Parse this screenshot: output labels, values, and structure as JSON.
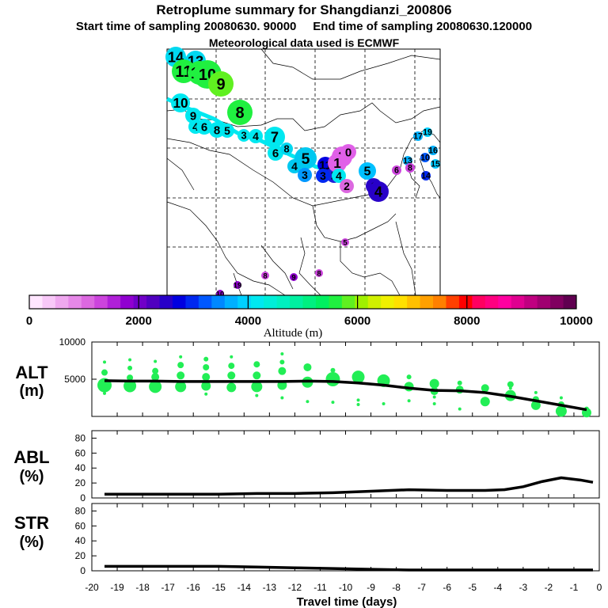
{
  "header": {
    "title": "Retroplume summary for Shangdianzi_200806",
    "subtitle_start": "Start time of sampling 20080630. 90000",
    "subtitle_end": "End time of sampling 20080630.120000",
    "met_line": "Meteorological data used is ECMWF"
  },
  "colorbar": {
    "label": "Altitude (m)",
    "ticks": [
      "0",
      "2000",
      "4000",
      "6000",
      "8000",
      "10000"
    ],
    "colors": [
      "#ffe6ff",
      "#f8c8f8",
      "#efa8ef",
      "#e688e8",
      "#dc68e0",
      "#cc44dd",
      "#b020d8",
      "#9000d0",
      "#7000c8",
      "#5000c0",
      "#2800c8",
      "#0000e0",
      "#0028f0",
      "#0058ff",
      "#0088ff",
      "#00b0ff",
      "#00d0ff",
      "#00e8f0",
      "#00eed8",
      "#00f0c0",
      "#00f0a0",
      "#00f080",
      "#00f060",
      "#20f040",
      "#60f020",
      "#a0f000",
      "#d0f000",
      "#f0f000",
      "#ffe000",
      "#ffc000",
      "#ffa000",
      "#ff8000",
      "#ff4000",
      "#ff0000",
      "#ff0060",
      "#ff0080",
      "#ff00a0",
      "#e00090",
      "#c00080",
      "#a00070",
      "#800060",
      "#600050"
    ]
  },
  "map_labels": [
    {
      "t": "14",
      "c": "#00d8f0",
      "s": 13
    },
    {
      "t": "13",
      "c": "#00d8f0",
      "s": 13
    },
    {
      "t": "11",
      "c": "#20f040",
      "s": 15
    },
    {
      "t": "12",
      "c": "#20f040",
      "s": 15
    },
    {
      "t": "10",
      "c": "#20f040",
      "s": 18
    },
    {
      "t": "9",
      "c": "#60f020",
      "s": 16
    },
    {
      "t": "10",
      "c": "#00e8f0",
      "s": 12
    },
    {
      "t": "8",
      "c": "#20f040",
      "s": 16
    },
    {
      "t": "9",
      "c": "#00e8f0",
      "s": 10
    },
    {
      "t": "4",
      "c": "#00e8f0",
      "s": 9
    },
    {
      "t": "6",
      "c": "#00e8f0",
      "s": 10
    },
    {
      "t": "8",
      "c": "#00e8f0",
      "s": 10
    },
    {
      "t": "5",
      "c": "#00e8f0",
      "s": 9
    },
    {
      "t": "3",
      "c": "#00e8f0",
      "s": 8
    },
    {
      "t": "4",
      "c": "#00e8f0",
      "s": 9
    },
    {
      "t": "7",
      "c": "#00e8f0",
      "s": 13
    },
    {
      "t": "6",
      "c": "#00e8f0",
      "s": 10
    },
    {
      "t": "8",
      "c": "#00d8f0",
      "s": 8
    },
    {
      "t": "5",
      "c": "#00c8f0",
      "s": 14
    },
    {
      "t": "4",
      "c": "#00c8f0",
      "s": 9
    },
    {
      "t": "3",
      "c": "#0098ff",
      "s": 9
    },
    {
      "t": "11",
      "c": "#0000e0",
      "s": 10
    },
    {
      "t": "9",
      "c": "#e060e8",
      "s": 13
    },
    {
      "t": "0",
      "c": "#e060e8",
      "s": 10
    },
    {
      "t": "2",
      "c": "#2020d8",
      "s": 10
    },
    {
      "t": "3",
      "c": "#0028f0",
      "s": 9
    },
    {
      "t": "1",
      "c": "#e060e8",
      "s": 12
    },
    {
      "t": "4",
      "c": "#00e8f0",
      "s": 9
    },
    {
      "t": "2",
      "c": "#dc68e0",
      "s": 9
    },
    {
      "t": "5",
      "c": "#00c0ff",
      "s": 11
    },
    {
      "t": "6",
      "c": "#2800c8",
      "s": 10
    },
    {
      "t": "4",
      "c": "#2800c8",
      "s": 13
    },
    {
      "t": "6",
      "c": "#cc44dd",
      "s": 6
    },
    {
      "t": "13",
      "c": "#00b0ff",
      "s": 6
    },
    {
      "t": "8",
      "c": "#cc44dd",
      "s": 6
    },
    {
      "t": "16",
      "c": "#00b0ff",
      "s": 6
    },
    {
      "t": "10",
      "c": "#0058ff",
      "s": 6
    },
    {
      "t": "15",
      "c": "#00c8ff",
      "s": 6
    },
    {
      "t": "14",
      "c": "#0028f0",
      "s": 6
    },
    {
      "t": "17",
      "c": "#00b0ff",
      "s": 6
    },
    {
      "t": "19",
      "c": "#00d0ff",
      "s": 6
    },
    {
      "t": "5",
      "c": "#cc44dd",
      "s": 5
    },
    {
      "t": "8",
      "c": "#cc44dd",
      "s": 5
    },
    {
      "t": "9",
      "c": "#9000d0",
      "s": 5
    },
    {
      "t": "8",
      "c": "#cc44dd",
      "s": 5
    },
    {
      "t": "19",
      "c": "#9000d0",
      "s": 5
    },
    {
      "t": "10",
      "c": "#9000d0",
      "s": 5
    }
  ],
  "chart_data": [
    {
      "type": "scatter+line",
      "panel": "ALT",
      "ylabel": "ALT",
      "yunit": "(m)",
      "ylim": [
        0,
        10000
      ],
      "yticks": [
        5000,
        10000
      ],
      "x": [
        -19.5,
        -18.5,
        -17.5,
        -16.5,
        -15.5,
        -14.5,
        -13.5,
        -12.5,
        -11.5,
        -10.5,
        -9.5,
        -8.5,
        -7.5,
        -6.5,
        -5.5,
        -4.5,
        -3.5,
        -2.5,
        -1.5,
        -0.5
      ],
      "mean_line": [
        4800,
        4750,
        4750,
        4700,
        4700,
        4700,
        4700,
        4700,
        4750,
        4700,
        4500,
        4200,
        3800,
        3500,
        3450,
        3200,
        2700,
        2100,
        1500,
        900
      ],
      "particles": [
        {
          "x": -19.5,
          "alt": 4200,
          "r": 9
        },
        {
          "x": -19.5,
          "alt": 5900,
          "r": 4
        },
        {
          "x": -19.5,
          "alt": 7300,
          "r": 2
        },
        {
          "x": -19.5,
          "alt": 3100,
          "r": 2
        },
        {
          "x": -18.5,
          "alt": 4100,
          "r": 8
        },
        {
          "x": -18.5,
          "alt": 5200,
          "r": 4
        },
        {
          "x": -18.5,
          "alt": 6500,
          "r": 3
        },
        {
          "x": -18.5,
          "alt": 7600,
          "r": 2
        },
        {
          "x": -17.5,
          "alt": 4000,
          "r": 8
        },
        {
          "x": -17.5,
          "alt": 5300,
          "r": 5
        },
        {
          "x": -17.5,
          "alt": 6100,
          "r": 4
        },
        {
          "x": -17.5,
          "alt": 7400,
          "r": 2
        },
        {
          "x": -16.5,
          "alt": 4000,
          "r": 7
        },
        {
          "x": -16.5,
          "alt": 5500,
          "r": 5
        },
        {
          "x": -16.5,
          "alt": 6900,
          "r": 4
        },
        {
          "x": -16.5,
          "alt": 8000,
          "r": 2
        },
        {
          "x": -15.5,
          "alt": 4100,
          "r": 6
        },
        {
          "x": -15.5,
          "alt": 5300,
          "r": 5
        },
        {
          "x": -15.5,
          "alt": 6600,
          "r": 4
        },
        {
          "x": -15.5,
          "alt": 7700,
          "r": 3
        },
        {
          "x": -15.5,
          "alt": 3000,
          "r": 2
        },
        {
          "x": -14.5,
          "alt": 3900,
          "r": 6
        },
        {
          "x": -14.5,
          "alt": 5500,
          "r": 5
        },
        {
          "x": -14.5,
          "alt": 6800,
          "r": 4
        },
        {
          "x": -14.5,
          "alt": 8000,
          "r": 2
        },
        {
          "x": -13.5,
          "alt": 4000,
          "r": 7
        },
        {
          "x": -13.5,
          "alt": 5500,
          "r": 5
        },
        {
          "x": -13.5,
          "alt": 7000,
          "r": 4
        },
        {
          "x": -13.5,
          "alt": 2800,
          "r": 2
        },
        {
          "x": -12.5,
          "alt": 4200,
          "r": 6
        },
        {
          "x": -12.5,
          "alt": 6100,
          "r": 5
        },
        {
          "x": -12.5,
          "alt": 7300,
          "r": 3
        },
        {
          "x": -12.5,
          "alt": 8400,
          "r": 2
        },
        {
          "x": -12.5,
          "alt": 2500,
          "r": 2
        },
        {
          "x": -11.5,
          "alt": 4600,
          "r": 7
        },
        {
          "x": -11.5,
          "alt": 6600,
          "r": 5
        },
        {
          "x": -11.5,
          "alt": 2000,
          "r": 2
        },
        {
          "x": -10.5,
          "alt": 5000,
          "r": 9
        },
        {
          "x": -10.5,
          "alt": 6200,
          "r": 3
        },
        {
          "x": -10.5,
          "alt": 1900,
          "r": 2
        },
        {
          "x": -9.5,
          "alt": 5300,
          "r": 8
        },
        {
          "x": -9.5,
          "alt": 1600,
          "r": 2
        },
        {
          "x": -9.5,
          "alt": 2200,
          "r": 2
        },
        {
          "x": -8.5,
          "alt": 4800,
          "r": 8
        },
        {
          "x": -8.5,
          "alt": 1700,
          "r": 2
        },
        {
          "x": -7.5,
          "alt": 4000,
          "r": 6
        },
        {
          "x": -7.5,
          "alt": 5300,
          "r": 3
        },
        {
          "x": -7.5,
          "alt": 2100,
          "r": 2
        },
        {
          "x": -6.5,
          "alt": 4400,
          "r": 6
        },
        {
          "x": -6.5,
          "alt": 3400,
          "r": 5
        },
        {
          "x": -6.5,
          "alt": 2600,
          "r": 2
        },
        {
          "x": -6.5,
          "alt": 1700,
          "r": 2
        },
        {
          "x": -5.5,
          "alt": 3600,
          "r": 5
        },
        {
          "x": -5.5,
          "alt": 4500,
          "r": 3
        },
        {
          "x": -5.5,
          "alt": 1000,
          "r": 2
        },
        {
          "x": -4.5,
          "alt": 3800,
          "r": 5
        },
        {
          "x": -4.5,
          "alt": 2000,
          "r": 6
        },
        {
          "x": -3.5,
          "alt": 2800,
          "r": 7
        },
        {
          "x": -3.5,
          "alt": 4300,
          "r": 4
        },
        {
          "x": -3.5,
          "alt": 3800,
          "r": 2
        },
        {
          "x": -2.5,
          "alt": 1500,
          "r": 6
        },
        {
          "x": -2.5,
          "alt": 2300,
          "r": 4
        },
        {
          "x": -2.5,
          "alt": 3200,
          "r": 2
        },
        {
          "x": -1.5,
          "alt": 700,
          "r": 7
        },
        {
          "x": -1.5,
          "alt": 1600,
          "r": 4
        },
        {
          "x": -1.5,
          "alt": 2500,
          "r": 2
        },
        {
          "x": -0.5,
          "alt": 500,
          "r": 6
        },
        {
          "x": -0.5,
          "alt": 1000,
          "r": 3
        }
      ]
    },
    {
      "type": "line",
      "panel": "ABL",
      "ylabel": "ABL",
      "yunit": "(%)",
      "ylim": [
        0,
        90
      ],
      "yticks": [
        0,
        20,
        40,
        60,
        80
      ],
      "x": [
        -19.5,
        -18,
        -16.5,
        -15,
        -13.5,
        -12,
        -10.5,
        -9,
        -7.5,
        -6,
        -4.5,
        -3.75,
        -3,
        -2.25,
        -1.5,
        -0.75,
        -0.25
      ],
      "values": [
        5,
        5,
        5,
        5,
        6,
        6,
        7,
        9,
        11,
        10,
        10,
        11,
        15,
        22,
        27,
        24,
        21
      ]
    },
    {
      "type": "line",
      "panel": "STR",
      "ylabel": "STR",
      "yunit": "(%)",
      "ylim": [
        0,
        90
      ],
      "yticks": [
        0,
        20,
        40,
        60,
        80
      ],
      "x": [
        -19.5,
        -18,
        -16.5,
        -15,
        -13.5,
        -12,
        -10.5,
        -9,
        -7.5,
        -6,
        -4.5,
        -3,
        -1.5,
        -0.25
      ],
      "values": [
        6,
        6,
        6,
        6,
        5,
        4,
        3,
        2,
        1,
        1,
        1,
        1,
        1,
        1
      ]
    }
  ],
  "xaxis": {
    "label": "Travel time (days)",
    "ticks": [
      "-20",
      "-19",
      "-18",
      "-17",
      "-16",
      "-15",
      "-14",
      "-13",
      "-12",
      "-11",
      "-10",
      "-9",
      "-8",
      "-7",
      "-6",
      "-5",
      "-4",
      "-3",
      "-2",
      "-1",
      "0"
    ]
  }
}
